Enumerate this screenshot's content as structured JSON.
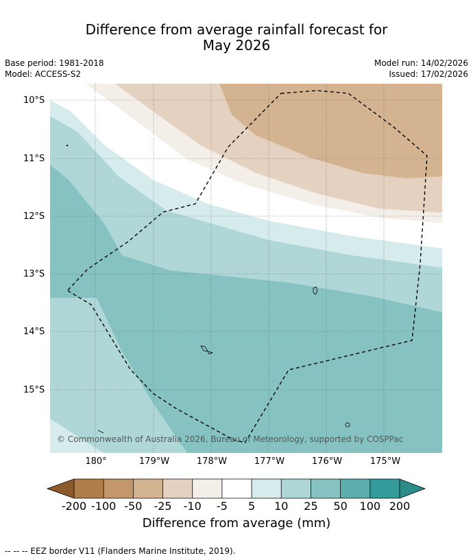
{
  "title": {
    "line1": "Difference from average rainfall forecast for",
    "line2": "May 2026"
  },
  "meta": {
    "base_period": "Base period: 1981-2018",
    "model": "Model: ACCESS-S2",
    "model_run": "Model run: 14/02/2026",
    "issued": "Issued: 17/02/2026"
  },
  "map": {
    "lat_labels": [
      "10°S",
      "11°S",
      "12°S",
      "13°S",
      "14°S",
      "15°S"
    ],
    "lon_labels": [
      "180°",
      "179°W",
      "178°W",
      "177°W",
      "176°W",
      "175°W"
    ],
    "copyright": "© Commonwealth of Australia 2026, Bureau of Meteorology, supported by COSPPac"
  },
  "colorbar": {
    "ticks": [
      "-200",
      "-100",
      "-50",
      "-25",
      "-10",
      "-5",
      "5",
      "10",
      "25",
      "50",
      "100",
      "200"
    ],
    "colors": [
      "#8c5a2b",
      "#b07d4a",
      "#c4976a",
      "#d4b391",
      "#e5d1bf",
      "#f3eee8",
      "#ffffff",
      "#d6ebeb",
      "#afd7d7",
      "#86c2c1",
      "#5caead",
      "#339b99",
      "#2b8c8a"
    ],
    "title": "Difference from average (mm)"
  },
  "footer": {
    "legend": "--  --  -- EEZ border V11 (Flanders Marine Institute, 2019)."
  }
}
